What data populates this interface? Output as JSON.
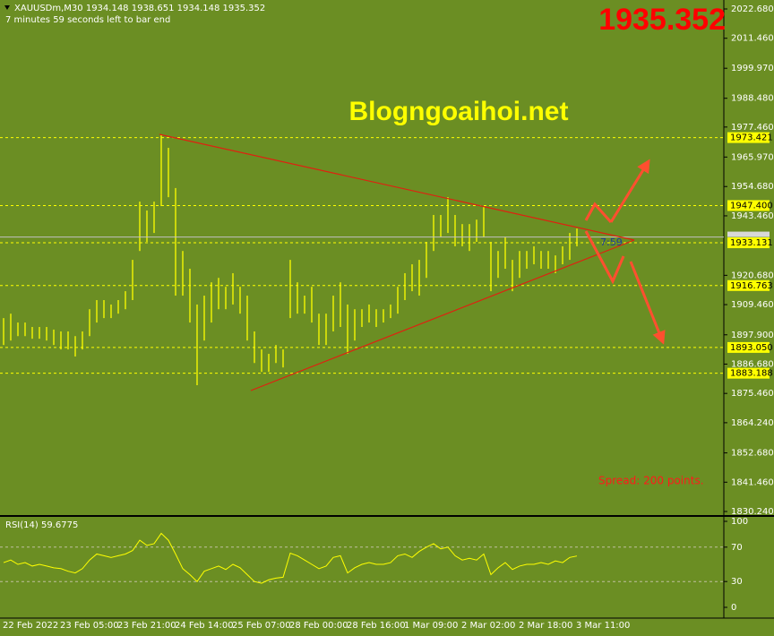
{
  "chart_data": [
    {
      "type": "ohlc",
      "title": "XAUUSDm,M30  1934.148 1938.651 1934.148 1935.352",
      "subtitle": "7 minutes 59 seconds left to bar end",
      "watermark": "Blogngoaihoi.net",
      "last_price": 1935.352,
      "countdown": "7:59",
      "annotation": "Spread: 200 points.",
      "color": "#ffff00",
      "categories": [
        "22 Feb 2022",
        null,
        null,
        null,
        null,
        null,
        null,
        null,
        "23 Feb 05:00",
        null,
        null,
        null,
        null,
        null,
        null,
        null,
        "23 Feb 21:00",
        null,
        null,
        null,
        null,
        null,
        null,
        null,
        "24 Feb 14:00",
        null,
        null,
        null,
        null,
        null,
        null,
        null,
        "25 Feb 07:00",
        null,
        null,
        null,
        null,
        null,
        null,
        null,
        "28 Feb 00:00",
        null,
        null,
        null,
        null,
        null,
        null,
        null,
        "28 Feb 16:00",
        null,
        null,
        null,
        null,
        null,
        null,
        null,
        "1 Mar 09:00",
        null,
        null,
        null,
        null,
        null,
        null,
        null,
        "2 Mar 02:00",
        null,
        null,
        null,
        null,
        null,
        null,
        null,
        "2 Mar 18:00",
        null,
        null,
        null,
        null,
        null,
        null,
        null,
        "3 Mar 11:00"
      ],
      "high": [
        1904.3,
        1906.0,
        1902.6,
        1902.6,
        1900.9,
        1900.9,
        1900.9,
        1899.9,
        1899.2,
        1899.2,
        1897.4,
        1899.2,
        1907.7,
        1911.2,
        1911.2,
        1909.5,
        1911.2,
        1914.6,
        1926.6,
        1948.9,
        1945.5,
        1948.9,
        1974.6,
        1969.5,
        1954.1,
        1930.0,
        1923.2,
        1909.5,
        1912.9,
        1918.0,
        1919.7,
        1916.3,
        1921.5,
        1916.3,
        1912.9,
        1899.2,
        1892.3,
        1890.6,
        1894.0,
        1892.3,
        1926.6,
        1918.0,
        1912.9,
        1916.3,
        1906.0,
        1906.0,
        1912.9,
        1918.0,
        1909.5,
        1907.7,
        1907.7,
        1909.5,
        1907.7,
        1907.7,
        1909.5,
        1916.3,
        1921.5,
        1924.9,
        1926.6,
        1933.5,
        1943.8,
        1943.8,
        1950.6,
        1943.8,
        1940.3,
        1940.3,
        1942.0,
        1947.2,
        1933.5,
        1930.0,
        1935.2,
        1926.6,
        1930.0,
        1930.0,
        1931.8,
        1930.0,
        1930.0,
        1928.3,
        1931.8,
        1936.9,
        1938.6
      ],
      "low": [
        1894.0,
        1895.7,
        1897.4,
        1897.4,
        1896.4,
        1896.4,
        1895.7,
        1894.0,
        1892.3,
        1892.3,
        1889.6,
        1892.3,
        1897.4,
        1902.6,
        1904.3,
        1904.3,
        1906.0,
        1907.7,
        1911.2,
        1930.0,
        1933.5,
        1936.9,
        1947.2,
        1950.6,
        1912.9,
        1912.9,
        1902.6,
        1878.6,
        1895.7,
        1902.6,
        1907.7,
        1907.7,
        1909.5,
        1906.0,
        1895.7,
        1887.1,
        1883.7,
        1883.7,
        1887.1,
        1885.4,
        1904.3,
        1906.0,
        1906.0,
        1902.6,
        1894.0,
        1894.0,
        1899.2,
        1900.9,
        1890.6,
        1895.7,
        1900.9,
        1902.6,
        1900.9,
        1902.6,
        1904.3,
        1906.0,
        1911.2,
        1914.6,
        1912.9,
        1919.7,
        1930.0,
        1935.2,
        1936.9,
        1931.8,
        1931.8,
        1930.0,
        1933.5,
        1935.2,
        1914.6,
        1919.7,
        1923.2,
        1914.6,
        1919.7,
        1923.2,
        1924.9,
        1923.2,
        1923.2,
        1921.5,
        1924.9,
        1926.6,
        1931.8
      ],
      "ylim": [
        1828.87,
        2026.11
      ],
      "yticks": [
        {
          "value": 2022.68,
          "label": "2022.680"
        },
        {
          "value": 2011.46,
          "label": "2011.460"
        },
        {
          "value": 1999.97,
          "label": "1999.970"
        },
        {
          "value": 1988.48,
          "label": "1988.480"
        },
        {
          "value": 1977.46,
          "label": "1977.460"
        },
        {
          "value": 1965.97,
          "label": "1965.970"
        },
        {
          "value": 1954.68,
          "label": "1954.680"
        },
        {
          "value": 1943.46,
          "label": "1943.460"
        },
        {
          "value": 1920.68,
          "label": "1920.680"
        },
        {
          "value": 1909.46,
          "label": "1909.460"
        },
        {
          "value": 1897.9,
          "label": "1897.900"
        },
        {
          "value": 1886.68,
          "label": "1886.680"
        },
        {
          "value": 1875.46,
          "label": "1875.460"
        },
        {
          "value": 1864.24,
          "label": "1864.240"
        },
        {
          "value": 1852.68,
          "label": "1852.680"
        },
        {
          "value": 1841.46,
          "label": "1841.460"
        },
        {
          "value": 1830.24,
          "label": "1830.240"
        }
      ],
      "levels": [
        1973.421,
        {
          "value": 1947.4,
          "label": "1947.400"
        },
        1933.131,
        1916.763,
        {
          "value": 1893.05,
          "label": "1893.050"
        },
        1883.188
      ]
    },
    {
      "type": "line",
      "title": "RSI(14) 59.6775",
      "color": "#ffff00",
      "values": [
        52,
        55,
        50,
        52,
        48,
        50,
        48,
        46,
        45,
        42,
        40,
        45,
        55,
        62,
        60,
        58,
        60,
        62,
        66,
        78,
        72,
        74,
        86,
        78,
        62,
        45,
        38,
        30,
        42,
        45,
        48,
        44,
        50,
        46,
        38,
        30,
        28,
        32,
        34,
        35,
        63,
        60,
        55,
        50,
        45,
        48,
        58,
        60,
        40,
        46,
        50,
        52,
        50,
        50,
        52,
        60,
        62,
        58,
        65,
        70,
        74,
        68,
        70,
        60,
        55,
        57,
        55,
        62,
        38,
        46,
        52,
        44,
        48,
        50,
        50,
        52,
        50,
        54,
        52,
        58,
        59.7
      ],
      "ylim": [
        -12.5,
        105.2
      ],
      "yticks": [
        100,
        70,
        30,
        0
      ],
      "levels": [
        70,
        30
      ]
    }
  ]
}
